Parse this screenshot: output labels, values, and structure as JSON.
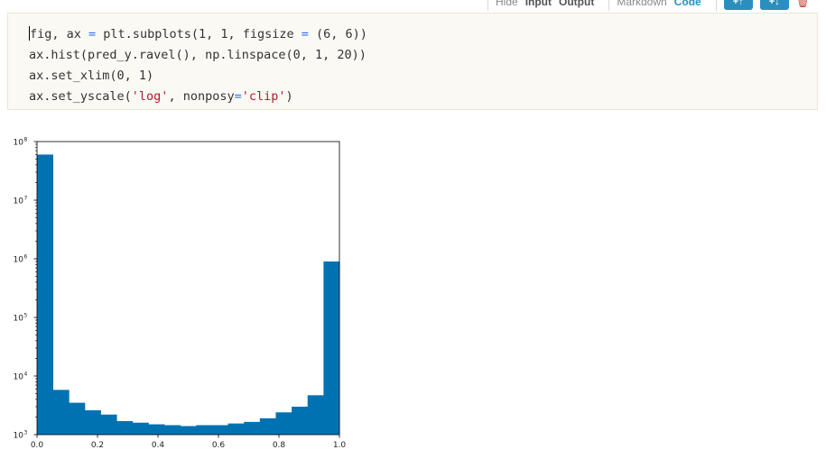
{
  "toolbar": {
    "hide_label": "Hide",
    "input_label": "Input",
    "output_label": "Output",
    "markdown_label": "Markdown",
    "code_label": "Code",
    "add_above_glyph": "+↑",
    "add_below_glyph": "+↓",
    "delete_glyph": "🗑",
    "colors": {
      "accent": "#2a8fbd",
      "delete": "#c0392b"
    }
  },
  "code_cell": {
    "lines": [
      [
        {
          "t": "fig, ax ",
          "c": ""
        },
        {
          "t": "=",
          "c": "op"
        },
        {
          "t": " plt.subplots(1, 1, figsize ",
          "c": ""
        },
        {
          "t": "=",
          "c": "op"
        },
        {
          "t": " (6, 6))",
          "c": ""
        }
      ],
      [
        {
          "t": "ax.hist(pred_y.ravel(), np.linspace(0, 1, 20))",
          "c": ""
        }
      ],
      [
        {
          "t": "ax.set_xlim(0, 1)",
          "c": ""
        }
      ],
      [
        {
          "t": "ax.set_yscale(",
          "c": ""
        },
        {
          "t": "'log'",
          "c": "str"
        },
        {
          "t": ", nonposy",
          "c": ""
        },
        {
          "t": "=",
          "c": "op"
        },
        {
          "t": "'clip'",
          "c": "str"
        },
        {
          "t": ")",
          "c": ""
        }
      ]
    ],
    "colors": {
      "background": "#fbf9f3",
      "operator": "#2d6ff0",
      "string": "#b8172a"
    }
  },
  "chart_data": {
    "type": "bar",
    "title": "",
    "xlabel": "",
    "ylabel": "",
    "xlim": [
      0,
      1
    ],
    "ylim_log10": [
      3,
      8
    ],
    "yscale": "log",
    "grid": false,
    "bin_edges": [
      0,
      0.0526,
      0.1053,
      0.1579,
      0.2105,
      0.2632,
      0.3158,
      0.3684,
      0.4211,
      0.4737,
      0.5263,
      0.5789,
      0.6316,
      0.6842,
      0.7368,
      0.7895,
      0.8421,
      0.8947,
      0.9474,
      1.0
    ],
    "values": [
      60000000,
      5800,
      3500,
      2600,
      2200,
      1700,
      1600,
      1500,
      1450,
      1400,
      1450,
      1450,
      1550,
      1650,
      1900,
      2400,
      3000,
      4700,
      900000
    ],
    "x_ticks": [
      "0.0",
      "0.2",
      "0.4",
      "0.6",
      "0.8",
      "1.0"
    ],
    "y_ticks": [
      {
        "base": "10",
        "exp": "3"
      },
      {
        "base": "10",
        "exp": "4"
      },
      {
        "base": "10",
        "exp": "5"
      },
      {
        "base": "10",
        "exp": "6"
      },
      {
        "base": "10",
        "exp": "7"
      },
      {
        "base": "10",
        "exp": "8"
      }
    ],
    "bar_color": "#0072b2"
  }
}
